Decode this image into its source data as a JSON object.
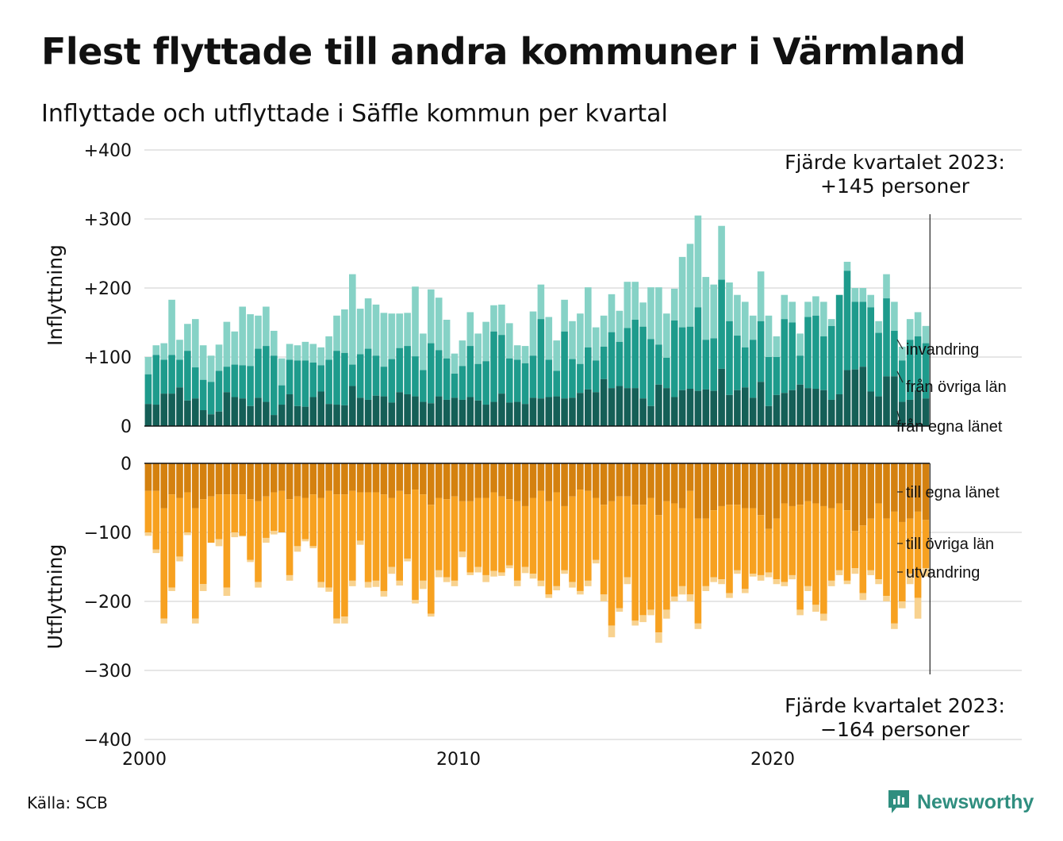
{
  "title": "Flest flyttade till andra kommuner i Värmland",
  "subtitle": "Inflyttade och utflyttade i Säffle kommun per kvartal",
  "source": "Källa: SCB",
  "brand": "Newsworthy",
  "colors": {
    "in_own": "#155f57",
    "in_other": "#1e9b8c",
    "in_imm": "#86d2c6",
    "out_own": "#d4810f",
    "out_other": "#f7a120",
    "out_emig": "#f8d28f",
    "grid": "#dddddd",
    "brand": "#2f8e7f"
  },
  "chart_data": {
    "type": "bar",
    "stacked": true,
    "x_start": "2000 Q1",
    "x_end": "2023 Q4",
    "xticks": [
      "2000",
      "2010",
      "2020"
    ],
    "yticks_in": [
      "+400",
      "+300",
      "+200",
      "+100",
      "0"
    ],
    "yticks_out": [
      "0",
      "−100",
      "−200",
      "−300",
      "−400"
    ],
    "ylabel_in": "Inflyttning",
    "ylabel_out": "Utflyttning",
    "ylim_in": [
      0,
      400
    ],
    "ylim_out": [
      -400,
      0
    ],
    "grid": true,
    "annotation_in": [
      "Fjärde kvartalet 2023:",
      "+145 personer"
    ],
    "annotation_out": [
      "Fjärde kvartalet 2023:",
      "−164 personer"
    ],
    "labels_in": [
      "invandring",
      "från övriga län",
      "från egna länet"
    ],
    "labels_out": [
      "till egna länet",
      "till övriga län",
      "utvandring"
    ],
    "in_total": [
      100,
      117,
      120,
      183,
      125,
      148,
      155,
      117,
      102,
      118,
      151,
      137,
      173,
      162,
      160,
      173,
      138,
      98,
      119,
      117,
      122,
      119,
      114,
      130,
      160,
      169,
      220,
      170,
      185,
      176,
      164,
      163,
      163,
      164,
      202,
      134,
      198,
      186,
      154,
      105,
      124,
      165,
      134,
      151,
      175,
      176,
      149,
      117,
      116,
      166,
      205,
      158,
      124,
      183,
      152,
      163,
      201,
      143,
      160,
      191,
      167,
      209,
      209,
      179,
      201,
      201,
      163,
      199,
      245,
      264,
      305,
      216,
      205,
      290,
      208,
      190,
      180,
      160,
      224,
      160,
      130,
      190,
      180,
      134,
      180,
      188,
      180,
      155,
      170,
      238,
      200,
      200,
      190,
      152,
      220,
      180,
      115,
      155,
      165,
      145
    ],
    "in_other_lan": [
      75,
      103,
      96,
      103,
      96,
      109,
      85,
      67,
      64,
      80,
      86,
      89,
      88,
      87,
      112,
      116,
      102,
      59,
      96,
      95,
      95,
      92,
      88,
      96,
      109,
      106,
      89,
      104,
      112,
      102,
      86,
      97,
      113,
      116,
      101,
      81,
      120,
      110,
      98,
      76,
      87,
      116,
      90,
      94,
      137,
      132,
      98,
      96,
      91,
      102,
      155,
      96,
      80,
      137,
      97,
      90,
      114,
      95,
      115,
      136,
      122,
      142,
      154,
      144,
      126,
      118,
      99,
      153,
      143,
      144,
      172,
      125,
      127,
      212,
      152,
      131,
      114,
      125,
      152,
      100,
      100,
      155,
      150,
      102,
      158,
      160,
      130,
      145,
      190,
      225,
      180,
      180,
      172,
      135,
      185,
      138,
      95,
      125,
      130,
      120
    ],
    "in_own": [
      32,
      31,
      47,
      47,
      56,
      37,
      40,
      23,
      17,
      21,
      49,
      42,
      40,
      29,
      41,
      35,
      16,
      31,
      46,
      29,
      28,
      42,
      50,
      32,
      31,
      30,
      58,
      41,
      38,
      44,
      43,
      34,
      49,
      46,
      43,
      35,
      33,
      43,
      38,
      41,
      38,
      42,
      37,
      31,
      35,
      47,
      34,
      35,
      32,
      41,
      40,
      42,
      43,
      40,
      41,
      48,
      53,
      49,
      68,
      55,
      58,
      55,
      55,
      40,
      29,
      60,
      55,
      42,
      52,
      54,
      51,
      53,
      51,
      83,
      45,
      52,
      56,
      41,
      64,
      29,
      45,
      48,
      52,
      60,
      55,
      54,
      52,
      38,
      46,
      81,
      82,
      86,
      50,
      43,
      72,
      72,
      35,
      38,
      52,
      40
    ],
    "out_total": [
      105,
      130,
      232,
      185,
      142,
      104,
      232,
      185,
      110,
      120,
      192,
      107,
      106,
      143,
      180,
      115,
      103,
      100,
      170,
      128,
      113,
      123,
      180,
      186,
      232,
      232,
      178,
      118,
      180,
      179,
      193,
      160,
      177,
      142,
      203,
      182,
      222,
      165,
      172,
      178,
      136,
      162,
      158,
      172,
      164,
      163,
      152,
      178,
      159,
      167,
      178,
      195,
      184,
      160,
      180,
      190,
      178,
      145,
      200,
      252,
      215,
      175,
      235,
      230,
      220,
      260,
      225,
      200,
      190,
      200,
      240,
      185,
      172,
      175,
      195,
      160,
      188,
      164,
      170,
      165,
      175,
      178,
      168,
      220,
      185,
      215,
      228,
      178,
      162,
      175,
      160,
      198,
      162,
      175,
      200,
      240,
      210,
      175,
      225,
      164
    ],
    "out_other": [
      100,
      125,
      225,
      180,
      135,
      100,
      225,
      175,
      115,
      110,
      180,
      100,
      105,
      140,
      172,
      108,
      98,
      100,
      162,
      120,
      110,
      120,
      172,
      180,
      225,
      222,
      170,
      112,
      172,
      170,
      185,
      150,
      170,
      138,
      198,
      170,
      218,
      155,
      165,
      170,
      128,
      158,
      150,
      162,
      156,
      158,
      148,
      170,
      150,
      160,
      170,
      190,
      178,
      155,
      172,
      185,
      170,
      140,
      190,
      235,
      210,
      165,
      228,
      220,
      212,
      245,
      212,
      193,
      178,
      190,
      232,
      178,
      165,
      168,
      188,
      155,
      182,
      160,
      162,
      158,
      168,
      172,
      162,
      212,
      178,
      205,
      218,
      170,
      155,
      170,
      152,
      188,
      155,
      168,
      192,
      232,
      200,
      160,
      195,
      152
    ],
    "out_own": [
      40,
      40,
      65,
      45,
      50,
      42,
      65,
      52,
      48,
      45,
      45,
      45,
      45,
      52,
      55,
      48,
      42,
      40,
      52,
      48,
      50,
      45,
      50,
      40,
      45,
      45,
      40,
      42,
      42,
      42,
      45,
      50,
      40,
      45,
      38,
      45,
      60,
      50,
      52,
      48,
      55,
      55,
      50,
      50,
      42,
      48,
      52,
      55,
      62,
      50,
      40,
      55,
      42,
      62,
      48,
      38,
      40,
      50,
      60,
      55,
      48,
      48,
      60,
      60,
      50,
      75,
      55,
      58,
      65,
      40,
      80,
      80,
      68,
      62,
      60,
      60,
      65,
      65,
      75,
      95,
      80,
      58,
      62,
      60,
      55,
      58,
      62,
      65,
      58,
      68,
      98,
      90,
      80,
      58,
      80,
      70,
      85,
      80,
      70,
      82
    ]
  }
}
